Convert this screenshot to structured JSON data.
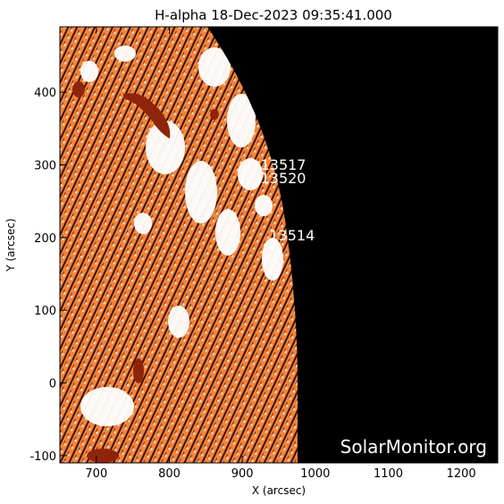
{
  "title": "H-alpha 18-Dec-2023 09:35:41.000",
  "xlabel": "X (arcsec)",
  "ylabel": "Y (arcsec)",
  "watermark": "SolarMonitor.org",
  "x_ticks": [
    "700",
    "800",
    "900",
    "1000",
    "1100",
    "1200"
  ],
  "y_ticks": [
    "-100",
    "0",
    "100",
    "200",
    "300",
    "400"
  ],
  "x_range": [
    650,
    1250
  ],
  "y_range": [
    -110,
    490
  ],
  "active_regions": [
    {
      "id": "13517",
      "x": 925,
      "y": 293
    },
    {
      "id": "13520",
      "x": 925,
      "y": 275
    },
    {
      "id": "13514",
      "x": 937,
      "y": 196
    }
  ],
  "colors": {
    "background": "#000000",
    "disk_base": "#f58a3c",
    "disk_dark": "#9a2b0c",
    "plage": "#ffffff",
    "limb_fibril": "#2a0d04"
  }
}
